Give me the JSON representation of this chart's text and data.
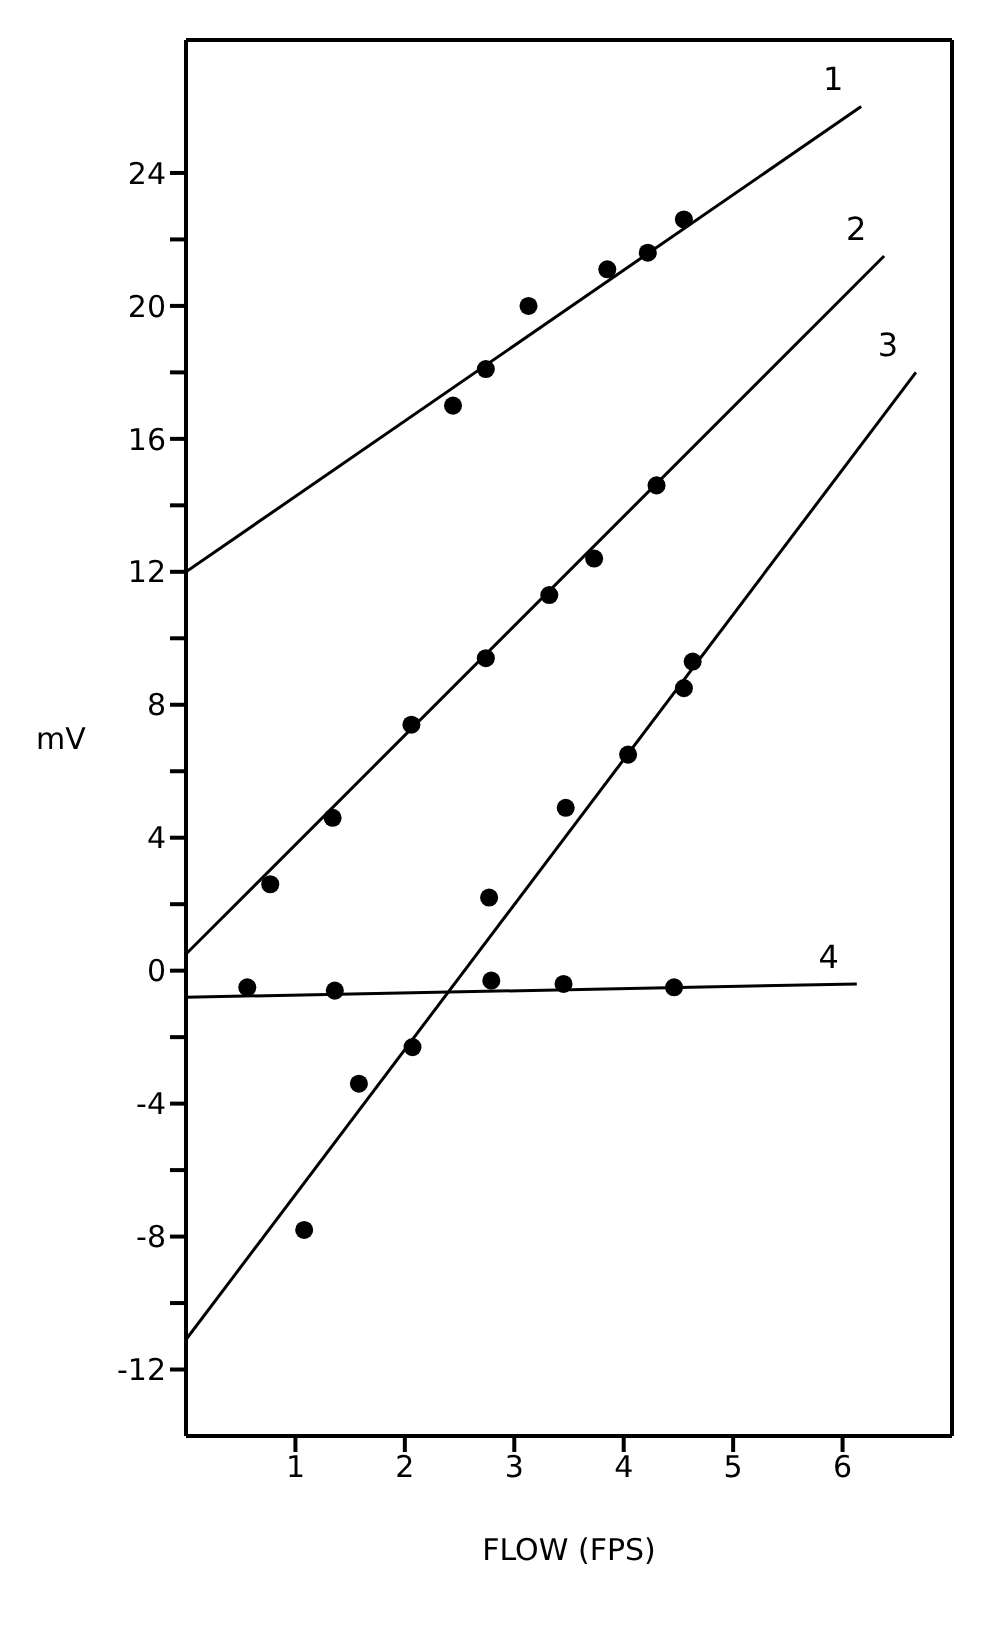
{
  "chart_data": {
    "type": "scatter",
    "xlabel": "FLOW (FPS)",
    "ylabel": "mV",
    "xlim": [
      0,
      7
    ],
    "xticks": [
      1,
      2,
      3,
      4,
      5,
      6
    ],
    "ylim": [
      -14,
      28
    ],
    "yticks": [
      -12,
      {
        "value": -10,
        "label": null
      },
      -8,
      {
        "value": -6,
        "label": null
      },
      -4,
      {
        "value": -2,
        "label": null
      },
      0,
      {
        "value": 2,
        "label": null
      },
      4,
      {
        "value": 6,
        "label": null
      },
      8,
      {
        "value": 10,
        "label": null
      },
      12,
      {
        "value": 14,
        "label": null
      },
      16,
      {
        "value": 18,
        "label": null
      },
      20,
      {
        "value": 22,
        "label": null
      },
      24
    ],
    "grid": false,
    "legend": false,
    "marker": "circle",
    "series": [
      {
        "color": "#000000",
        "x": [
          2.44,
          2.74,
          3.13,
          3.85,
          4.22,
          4.55
        ],
        "values": [
          17.0,
          18.1,
          20.0,
          21.1,
          21.6,
          22.6
        ]
      },
      {
        "color": "#000000",
        "x": [
          0.77,
          1.34,
          2.06,
          2.74,
          3.32,
          3.73,
          4.3
        ],
        "values": [
          2.6,
          4.6,
          7.4,
          9.4,
          11.3,
          12.4,
          14.6
        ]
      },
      {
        "color": "#000000",
        "x": [
          1.08,
          1.58,
          2.07,
          2.77,
          3.47,
          4.04,
          4.55,
          4.63
        ],
        "values": [
          -7.8,
          -3.4,
          -2.3,
          2.2,
          4.9,
          6.5,
          8.5,
          9.3
        ]
      },
      {
        "color": "#000000",
        "x": [
          0.56,
          1.36,
          2.79,
          3.45,
          4.46
        ],
        "values": [
          -0.5,
          -0.6,
          -0.3,
          -0.4,
          -0.5
        ]
      },
      {
        "type": "line",
        "name": "1",
        "color": "#000000",
        "marker": "none",
        "x": [
          0,
          6.17
        ],
        "values": [
          12.0,
          26.0
        ]
      },
      {
        "type": "line",
        "name": "2",
        "color": "#000000",
        "marker": "none",
        "x": [
          0,
          6.38
        ],
        "values": [
          0.5,
          21.5
        ]
      },
      {
        "type": "line",
        "name": "3",
        "color": "#000000",
        "marker": "none",
        "x": [
          0,
          6.67
        ],
        "values": [
          -11.1,
          18.0
        ]
      },
      {
        "type": "line",
        "name": "4",
        "color": "#000000",
        "marker": "none",
        "x": [
          0,
          6.13
        ],
        "values": [
          -0.8,
          -0.4
        ]
      }
    ]
  }
}
